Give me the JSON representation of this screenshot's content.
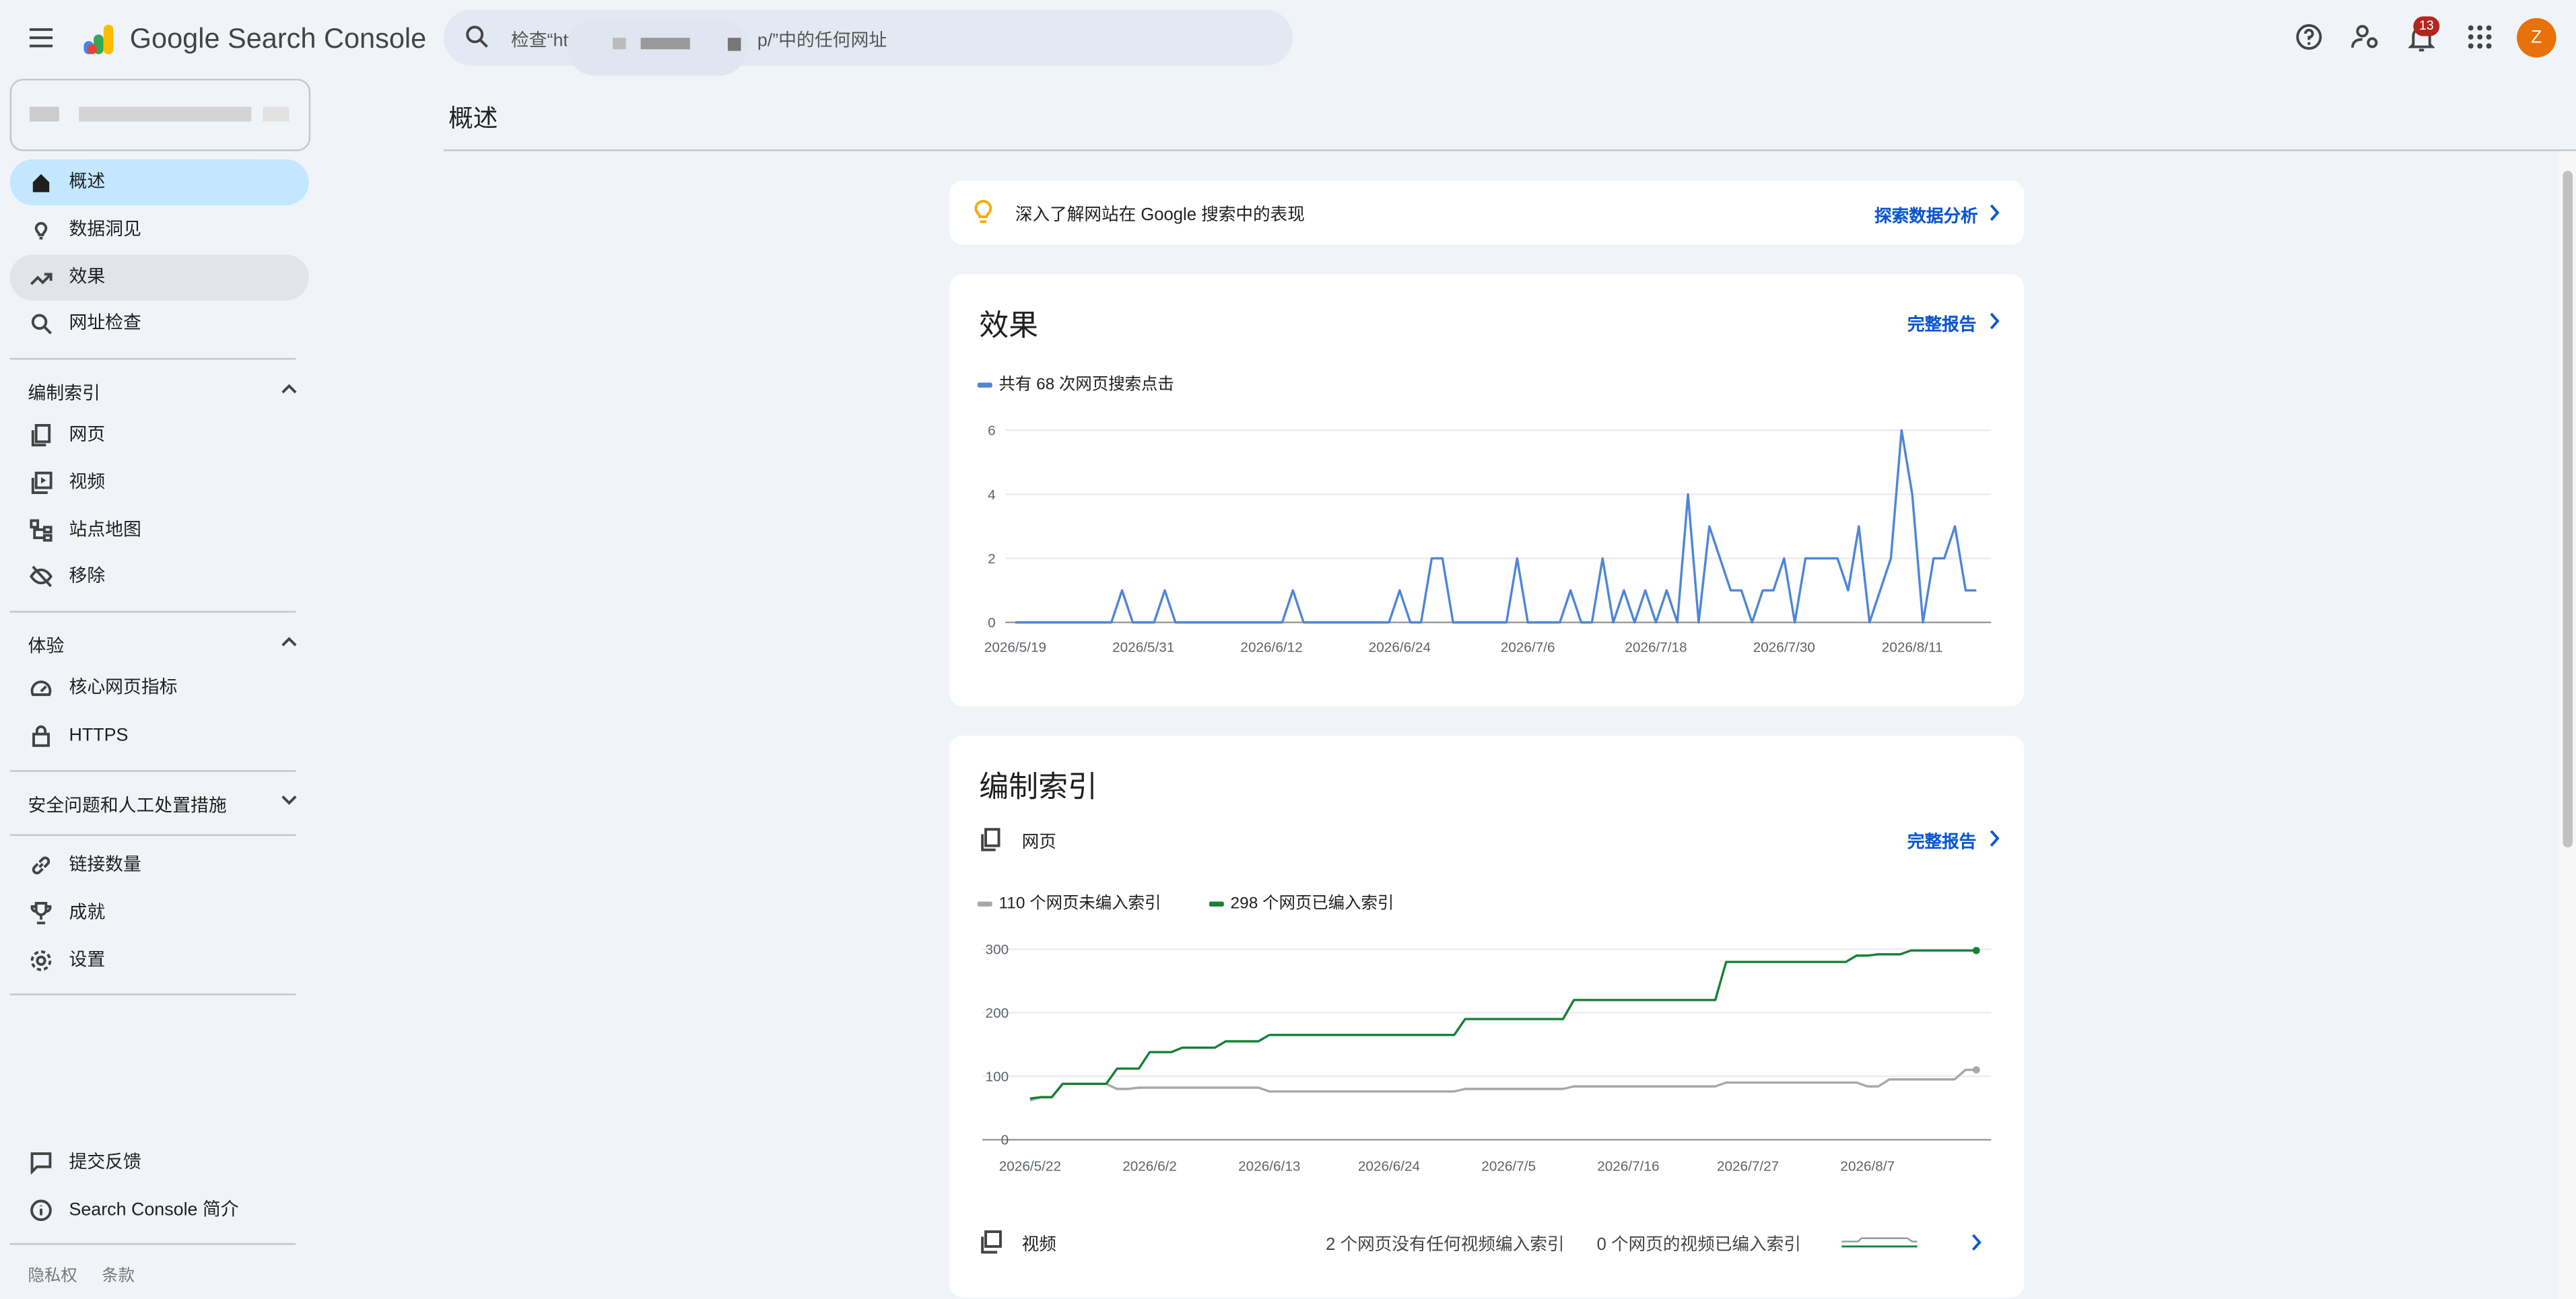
{
  "header": {
    "product": "Google Search Console",
    "search_start": "检查“htt",
    "search_end": "p/”中的任何网址",
    "notification_count": "13",
    "avatar": "Z"
  },
  "sidebar": {
    "main": [
      "概述",
      "数据洞见",
      "效果",
      "网址检查"
    ],
    "indexing": {
      "title": "编制索引",
      "items": [
        "网页",
        "视频",
        "站点地图",
        "移除"
      ]
    },
    "experience": {
      "title": "体验",
      "items": [
        "核心网页指标",
        "HTTPS"
      ]
    },
    "security": {
      "title": "安全问题和人工处置措施"
    },
    "other": [
      "链接数量",
      "成就",
      "设置"
    ],
    "footer": [
      "提交反馈",
      "Search Console 简介"
    ],
    "legal": [
      "隐私权",
      "条款"
    ]
  },
  "page_title": "概述",
  "insights": {
    "text": "深入了解网站在 Google 搜索中的表现",
    "link": "探索数据分析"
  },
  "performance": {
    "title": "效果",
    "link": "完整报告",
    "chart": {
      "type": "line",
      "grid": true,
      "ylim": [
        0,
        6
      ],
      "yticks": [
        0,
        2,
        4,
        6
      ],
      "categories": [
        "2026/5/19",
        null,
        null,
        null,
        null,
        null,
        null,
        null,
        null,
        null,
        null,
        null,
        "2026/5/31",
        null,
        null,
        null,
        null,
        null,
        null,
        null,
        null,
        null,
        null,
        null,
        "2026/6/12",
        null,
        null,
        null,
        null,
        null,
        null,
        null,
        null,
        null,
        null,
        null,
        "2026/6/24",
        null,
        null,
        null,
        null,
        null,
        null,
        null,
        null,
        null,
        null,
        null,
        "2026/7/6",
        null,
        null,
        null,
        null,
        null,
        null,
        null,
        null,
        null,
        null,
        null,
        "2026/7/18",
        null,
        null,
        null,
        null,
        null,
        null,
        null,
        null,
        null,
        null,
        null,
        "2026/7/30",
        null,
        null,
        null,
        null,
        null,
        null,
        null,
        null,
        null,
        null,
        null,
        "2026/8/11",
        null,
        null,
        null,
        null,
        null,
        null
      ],
      "series": [
        {
          "name": "共有 68 次网页搜索点击",
          "color": "#4e86d8",
          "values": [
            0,
            0,
            0,
            0,
            0,
            0,
            0,
            0,
            0,
            0,
            1,
            0,
            0,
            0,
            1,
            0,
            0,
            0,
            0,
            0,
            0,
            0,
            0,
            0,
            0,
            0,
            1,
            0,
            0,
            0,
            0,
            0,
            0,
            0,
            0,
            0,
            1,
            0,
            0,
            2,
            2,
            0,
            0,
            0,
            0,
            0,
            0,
            2,
            0,
            0,
            0,
            0,
            1,
            0,
            0,
            2,
            0,
            1,
            0,
            1,
            0,
            1,
            0,
            4,
            0,
            3,
            2,
            1,
            1,
            0,
            1,
            1,
            2,
            0,
            2,
            2,
            2,
            2,
            1,
            3,
            0,
            1,
            2,
            6,
            4,
            0,
            2,
            2,
            3,
            1,
            1
          ]
        }
      ]
    }
  },
  "indexing": {
    "title": "编制索引",
    "pages_label": "网页",
    "link": "完整报告",
    "chart": {
      "type": "line",
      "grid": true,
      "markers": "last",
      "ylim": [
        0,
        300
      ],
      "yticks": [
        0,
        100,
        200,
        300
      ],
      "categories": [
        "2026/5/22",
        null,
        null,
        null,
        null,
        null,
        null,
        null,
        null,
        null,
        null,
        "2026/6/2",
        null,
        null,
        null,
        null,
        null,
        null,
        null,
        null,
        null,
        null,
        "2026/6/13",
        null,
        null,
        null,
        null,
        null,
        null,
        null,
        null,
        null,
        null,
        "2026/6/24",
        null,
        null,
        null,
        null,
        null,
        null,
        null,
        null,
        null,
        null,
        "2026/7/5",
        null,
        null,
        null,
        null,
        null,
        null,
        null,
        null,
        null,
        null,
        "2026/7/16",
        null,
        null,
        null,
        null,
        null,
        null,
        null,
        null,
        null,
        null,
        "2026/7/27",
        null,
        null,
        null,
        null,
        null,
        null,
        null,
        null,
        null,
        null,
        "2026/8/7",
        null,
        null,
        null,
        null,
        null,
        null,
        null,
        null,
        null,
        null
      ],
      "series": [
        {
          "name": "110 个网页未编入索引",
          "color": "#a8a8a8",
          "values": [
            62,
            67,
            67,
            88,
            88,
            88,
            88,
            88,
            80,
            80,
            82,
            82,
            82,
            82,
            82,
            82,
            82,
            82,
            82,
            82,
            82,
            82,
            76,
            76,
            76,
            76,
            76,
            76,
            76,
            76,
            76,
            76,
            76,
            76,
            76,
            76,
            76,
            76,
            76,
            76,
            80,
            80,
            80,
            80,
            80,
            80,
            80,
            80,
            80,
            80,
            84,
            84,
            84,
            84,
            84,
            84,
            84,
            84,
            84,
            84,
            84,
            84,
            84,
            84,
            90,
            90,
            90,
            90,
            90,
            90,
            90,
            90,
            90,
            90,
            90,
            90,
            90,
            84,
            84,
            95,
            95,
            95,
            95,
            95,
            95,
            95,
            110,
            110
          ]
        },
        {
          "name": "298 个网页已编入索引",
          "color": "#188038",
          "values": [
            65,
            67,
            67,
            88,
            88,
            88,
            88,
            88,
            112,
            112,
            112,
            138,
            138,
            138,
            145,
            145,
            145,
            145,
            155,
            155,
            155,
            155,
            165,
            165,
            165,
            165,
            165,
            165,
            165,
            165,
            165,
            165,
            165,
            165,
            165,
            165,
            165,
            165,
            165,
            165,
            190,
            190,
            190,
            190,
            190,
            190,
            190,
            190,
            190,
            190,
            220,
            220,
            220,
            220,
            220,
            220,
            220,
            220,
            220,
            220,
            220,
            220,
            220,
            220,
            280,
            280,
            280,
            280,
            280,
            280,
            280,
            280,
            280,
            280,
            280,
            280,
            290,
            290,
            292,
            292,
            292,
            298,
            298,
            298,
            298,
            298,
            298,
            298
          ]
        }
      ]
    },
    "video": {
      "label": "视频",
      "not_indexed": "2 个网页没有任何视频编入索引",
      "indexed": "0 个网页的视频已编入索引"
    }
  }
}
